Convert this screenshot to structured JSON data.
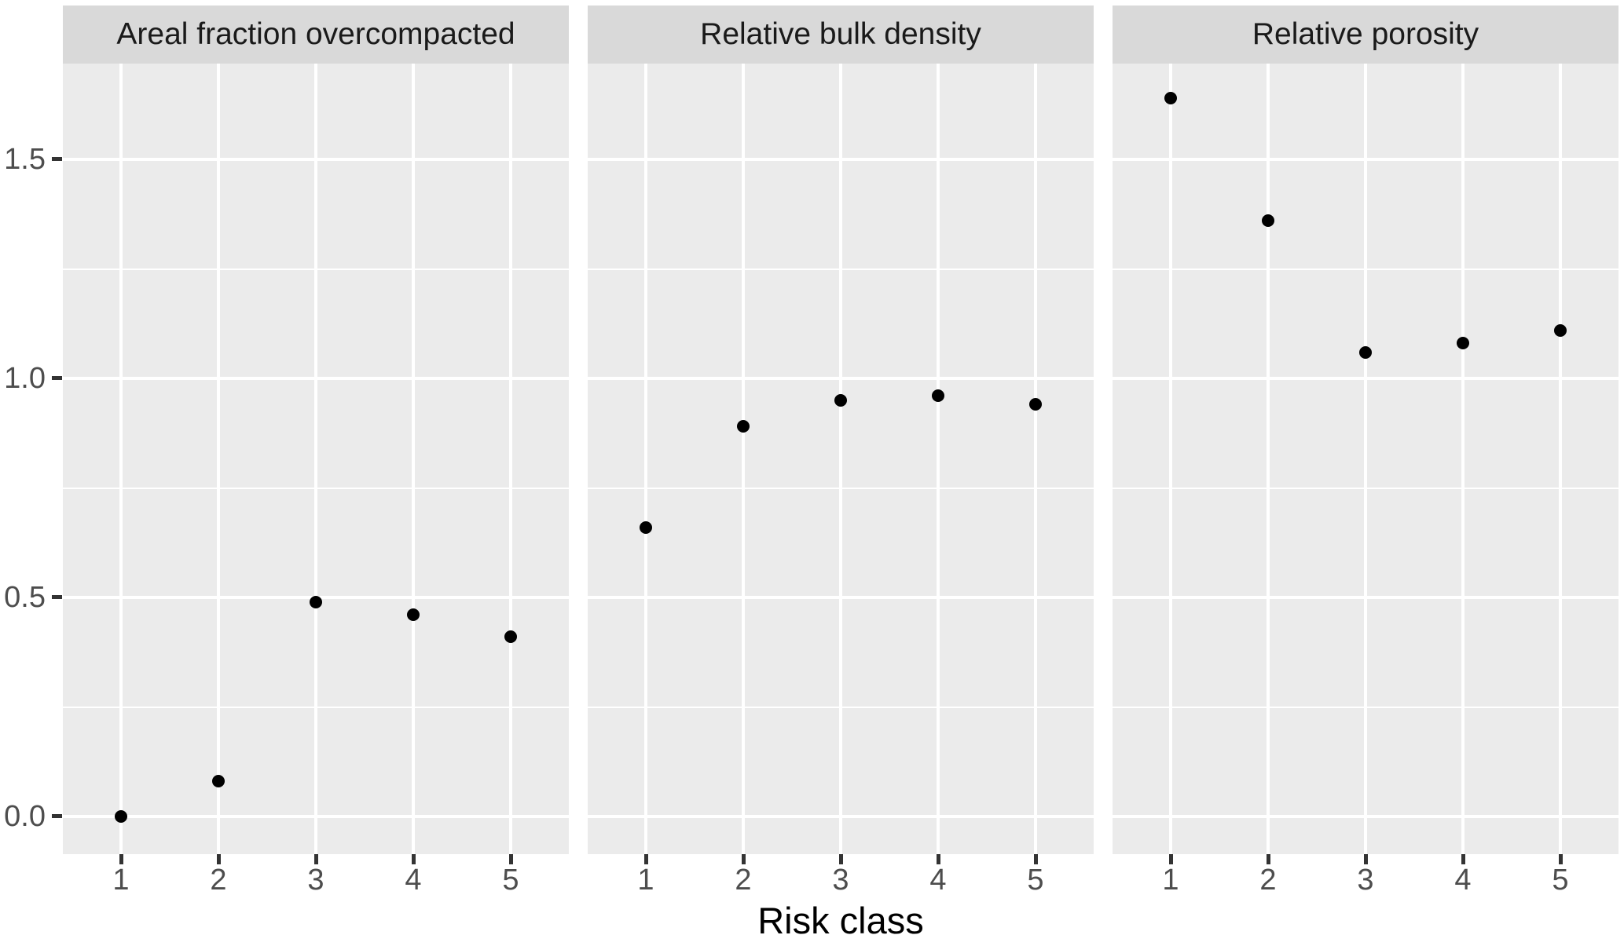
{
  "chart_data": {
    "type": "scatter",
    "title": "",
    "xlabel": "Risk class",
    "ylabel": "",
    "categories": [
      "1",
      "2",
      "3",
      "4",
      "5"
    ],
    "facets": [
      {
        "label": "Areal fraction overcompacted",
        "values": [
          0.0,
          0.08,
          0.49,
          0.46,
          0.41
        ]
      },
      {
        "label": "Relative bulk density",
        "values": [
          0.66,
          0.89,
          0.95,
          0.96,
          0.94
        ]
      },
      {
        "label": "Relative porosity",
        "values": [
          1.64,
          1.36,
          1.06,
          1.08,
          1.11
        ]
      }
    ],
    "y_tick_labels": [
      "1.5",
      "1.0",
      "0.5",
      "0.0"
    ],
    "y_tick_values": [
      1.5,
      1.0,
      0.5,
      0.0
    ],
    "y_minor_gridline_values": [
      1.25,
      0.75,
      0.25
    ],
    "ylim": [
      -0.08,
      1.72
    ],
    "grid": "horizontal major and minor white gridlines, vertical white gridlines at each category",
    "legend": "none",
    "theme": "ggplot2 grey facet panels with strip headers"
  },
  "colors": {
    "background": "#FFFFFF",
    "panel_background": "#EBEBEB",
    "strip_background": "#D9D9D9",
    "strip_text": "#1A1A1A",
    "gridline": "#FFFFFF",
    "point": "#000000",
    "tick_mark": "#333333",
    "tick_label": "#4D4D4D",
    "axis_title": "#000000"
  }
}
